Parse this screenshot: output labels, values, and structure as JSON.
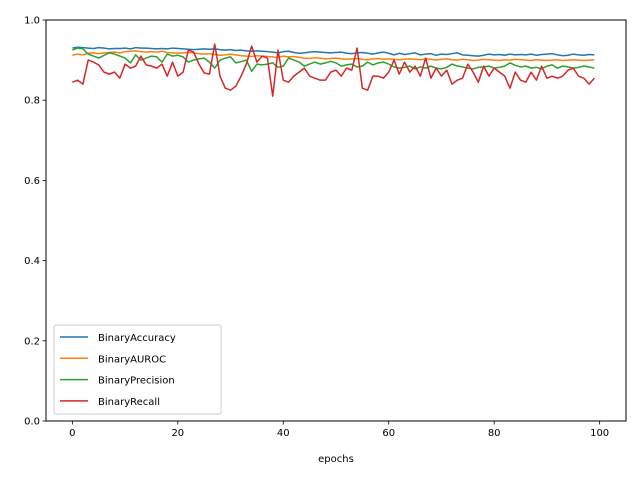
{
  "chart_data": {
    "type": "line",
    "xlabel": "epochs",
    "ylabel": "",
    "xlim": [
      -5,
      105
    ],
    "ylim": [
      0.0,
      1.0
    ],
    "xticks": [
      0,
      20,
      40,
      60,
      80,
      100
    ],
    "yticks": [
      0.0,
      0.2,
      0.4,
      0.6,
      0.8,
      1.0
    ],
    "xtick_labels": [
      "0",
      "20",
      "40",
      "60",
      "80",
      "100"
    ],
    "ytick_labels": [
      "0.0",
      "0.2",
      "0.4",
      "0.6",
      "0.8",
      "1.0"
    ],
    "grid": false,
    "legend_position": "lower-left",
    "x_start": 0,
    "series": [
      {
        "name": "BinaryAccuracy",
        "color": "#1f77b4",
        "values": [
          0.93,
          0.932,
          0.931,
          0.93,
          0.929,
          0.931,
          0.93,
          0.928,
          0.929,
          0.929,
          0.93,
          0.928,
          0.931,
          0.93,
          0.93,
          0.929,
          0.928,
          0.929,
          0.928,
          0.93,
          0.929,
          0.928,
          0.927,
          0.926,
          0.927,
          0.928,
          0.927,
          0.928,
          0.926,
          0.925,
          0.926,
          0.924,
          0.925,
          0.923,
          0.922,
          0.923,
          0.922,
          0.921,
          0.92,
          0.918,
          0.921,
          0.922,
          0.919,
          0.917,
          0.918,
          0.92,
          0.921,
          0.92,
          0.919,
          0.918,
          0.919,
          0.92,
          0.917,
          0.916,
          0.918,
          0.919,
          0.917,
          0.915,
          0.918,
          0.92,
          0.917,
          0.913,
          0.917,
          0.914,
          0.916,
          0.918,
          0.913,
          0.915,
          0.916,
          0.912,
          0.915,
          0.914,
          0.916,
          0.918,
          0.913,
          0.912,
          0.911,
          0.91,
          0.912,
          0.915,
          0.913,
          0.914,
          0.912,
          0.915,
          0.913,
          0.914,
          0.913,
          0.915,
          0.912,
          0.914,
          0.915,
          0.916,
          0.913,
          0.911,
          0.912,
          0.915,
          0.913,
          0.912,
          0.914,
          0.913
        ]
      },
      {
        "name": "BinaryAUROC",
        "color": "#ff7f0e",
        "values": [
          0.912,
          0.915,
          0.913,
          0.917,
          0.918,
          0.916,
          0.918,
          0.919,
          0.92,
          0.918,
          0.921,
          0.922,
          0.923,
          0.921,
          0.92,
          0.921,
          0.92,
          0.922,
          0.919,
          0.918,
          0.917,
          0.918,
          0.919,
          0.918,
          0.916,
          0.915,
          0.916,
          0.914,
          0.912,
          0.913,
          0.915,
          0.913,
          0.911,
          0.91,
          0.909,
          0.911,
          0.91,
          0.909,
          0.908,
          0.906,
          0.91,
          0.908,
          0.909,
          0.907,
          0.905,
          0.904,
          0.906,
          0.905,
          0.903,
          0.904,
          0.905,
          0.903,
          0.902,
          0.903,
          0.904,
          0.902,
          0.901,
          0.903,
          0.904,
          0.902,
          0.903,
          0.902,
          0.901,
          0.902,
          0.903,
          0.902,
          0.901,
          0.903,
          0.902,
          0.9,
          0.902,
          0.903,
          0.901,
          0.9,
          0.902,
          0.901,
          0.899,
          0.9,
          0.902,
          0.901,
          0.9,
          0.899,
          0.901,
          0.9,
          0.902,
          0.901,
          0.9,
          0.899,
          0.901,
          0.9,
          0.899,
          0.9,
          0.901,
          0.899,
          0.9,
          0.901,
          0.9,
          0.899,
          0.9,
          0.901
        ]
      },
      {
        "name": "BinaryPrecision",
        "color": "#2ca02c",
        "values": [
          0.925,
          0.93,
          0.928,
          0.915,
          0.91,
          0.905,
          0.912,
          0.918,
          0.915,
          0.91,
          0.905,
          0.893,
          0.913,
          0.9,
          0.905,
          0.91,
          0.908,
          0.895,
          0.915,
          0.91,
          0.912,
          0.908,
          0.895,
          0.9,
          0.903,
          0.905,
          0.895,
          0.88,
          0.9,
          0.905,
          0.908,
          0.893,
          0.896,
          0.9,
          0.872,
          0.89,
          0.888,
          0.89,
          0.893,
          0.882,
          0.885,
          0.905,
          0.9,
          0.895,
          0.885,
          0.89,
          0.895,
          0.89,
          0.893,
          0.897,
          0.893,
          0.885,
          0.888,
          0.89,
          0.883,
          0.885,
          0.895,
          0.888,
          0.893,
          0.895,
          0.89,
          0.883,
          0.88,
          0.882,
          0.885,
          0.878,
          0.883,
          0.88,
          0.885,
          0.88,
          0.878,
          0.882,
          0.89,
          0.885,
          0.883,
          0.88,
          0.878,
          0.882,
          0.883,
          0.885,
          0.88,
          0.882,
          0.885,
          0.893,
          0.887,
          0.883,
          0.885,
          0.88,
          0.882,
          0.878,
          0.885,
          0.888,
          0.88,
          0.885,
          0.883,
          0.88,
          0.882,
          0.885,
          0.883,
          0.88
        ]
      },
      {
        "name": "BinaryRecall",
        "color": "#d62728",
        "values": [
          0.845,
          0.85,
          0.84,
          0.9,
          0.895,
          0.888,
          0.87,
          0.865,
          0.87,
          0.855,
          0.89,
          0.88,
          0.885,
          0.91,
          0.888,
          0.885,
          0.88,
          0.89,
          0.86,
          0.895,
          0.86,
          0.87,
          0.925,
          0.92,
          0.89,
          0.868,
          0.865,
          0.94,
          0.86,
          0.83,
          0.825,
          0.835,
          0.86,
          0.89,
          0.935,
          0.895,
          0.91,
          0.905,
          0.81,
          0.925,
          0.85,
          0.845,
          0.86,
          0.87,
          0.88,
          0.86,
          0.855,
          0.85,
          0.85,
          0.87,
          0.875,
          0.86,
          0.88,
          0.875,
          0.93,
          0.83,
          0.825,
          0.86,
          0.86,
          0.855,
          0.87,
          0.9,
          0.865,
          0.895,
          0.87,
          0.885,
          0.86,
          0.905,
          0.855,
          0.88,
          0.86,
          0.875,
          0.84,
          0.85,
          0.855,
          0.89,
          0.87,
          0.845,
          0.885,
          0.86,
          0.88,
          0.87,
          0.86,
          0.83,
          0.87,
          0.85,
          0.845,
          0.87,
          0.85,
          0.885,
          0.855,
          0.86,
          0.855,
          0.86,
          0.875,
          0.88,
          0.86,
          0.855,
          0.84,
          0.855
        ]
      }
    ]
  }
}
